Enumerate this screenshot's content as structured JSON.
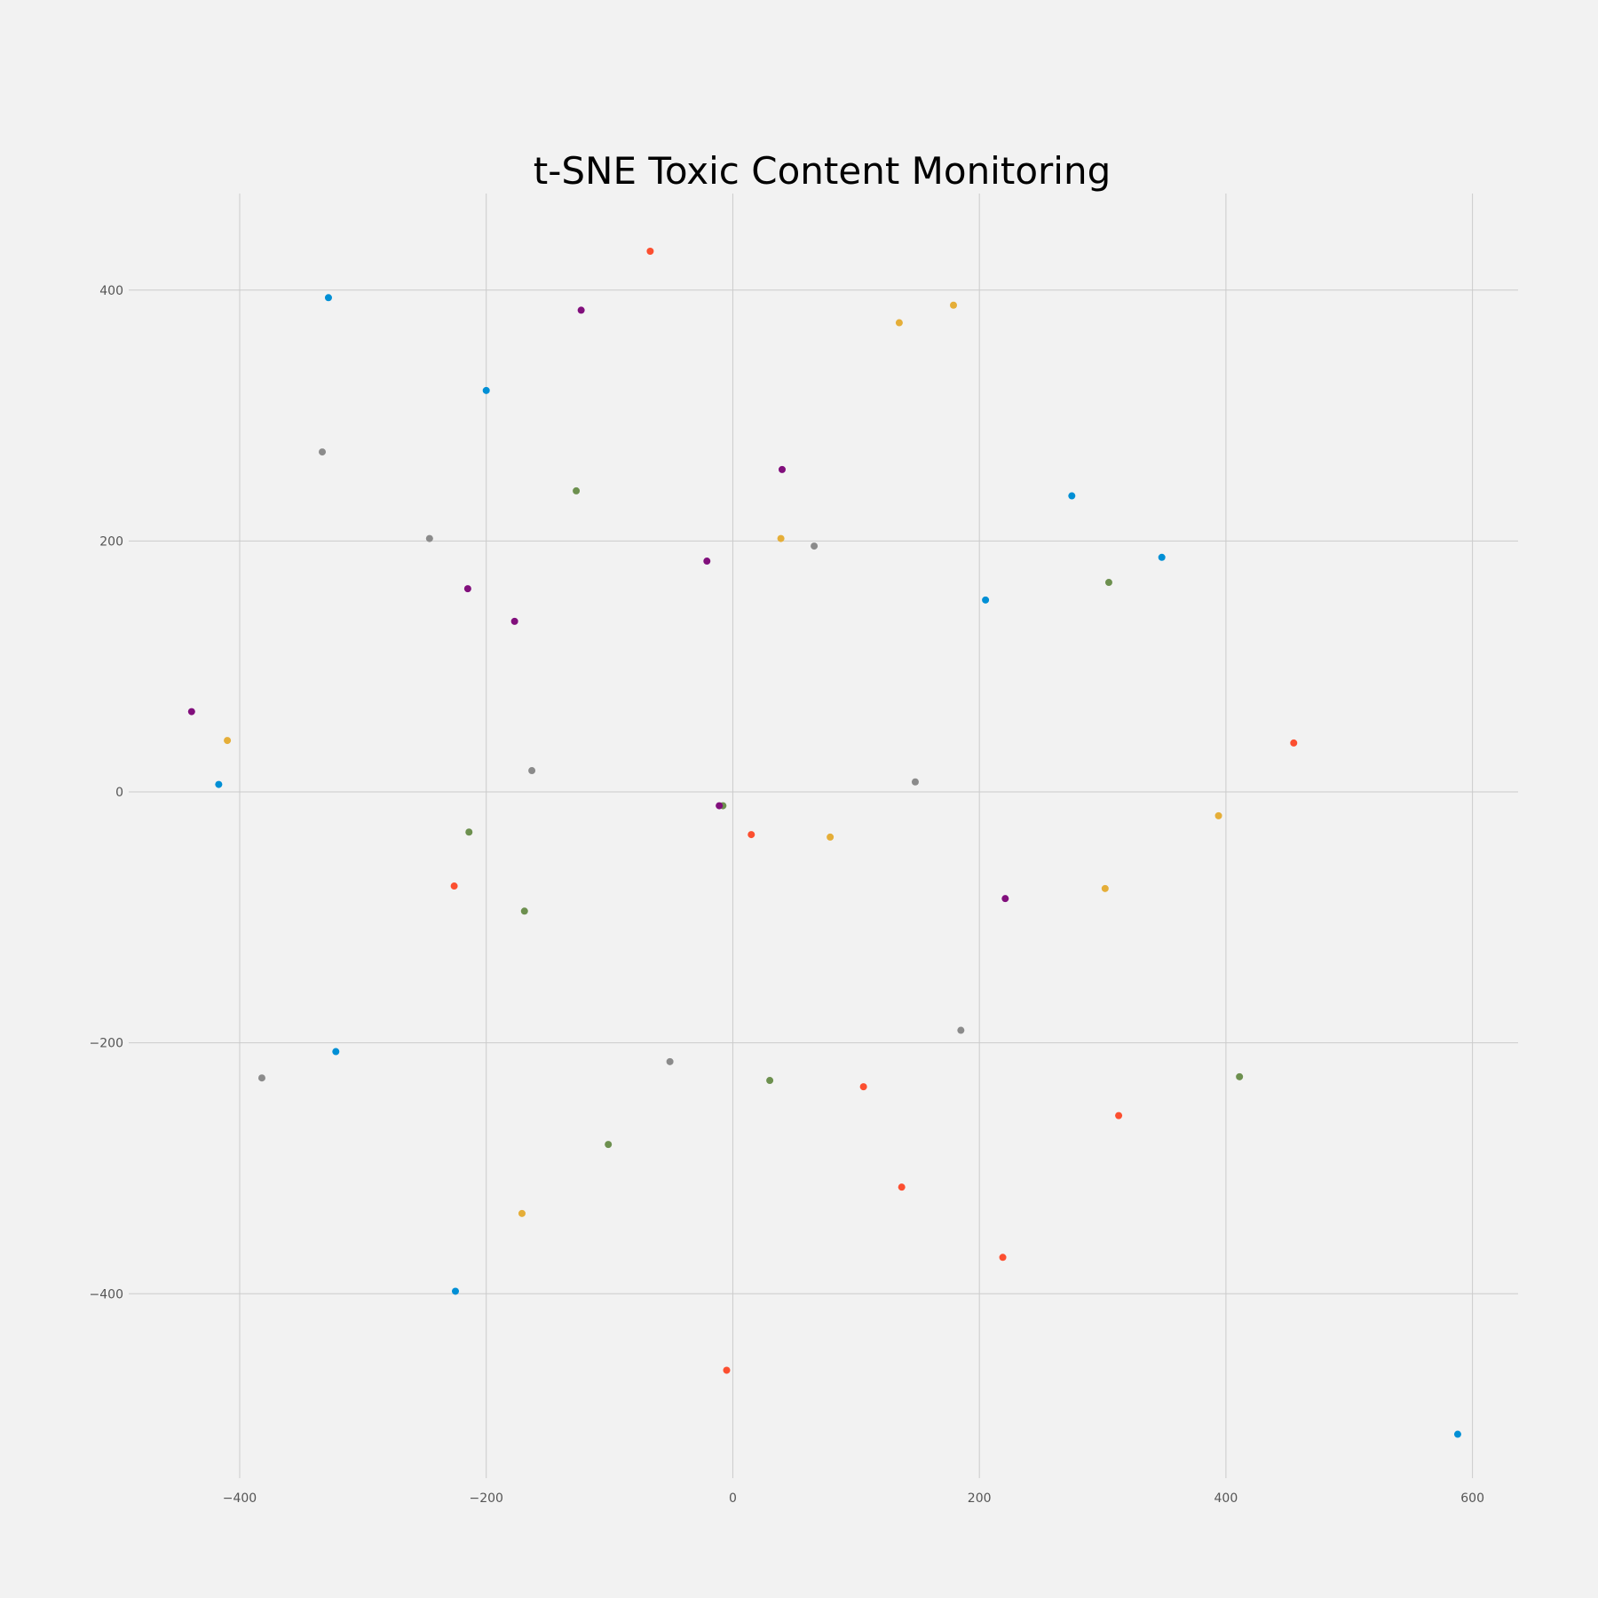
{
  "chart_data": {
    "type": "scatter",
    "title": "t-SNE Toxic Content Monitoring",
    "xlabel": "",
    "ylabel": "",
    "xlim": [
      -490,
      637
    ],
    "ylim": [
      -547,
      477
    ],
    "xticks": [
      -400,
      -200,
      0,
      200,
      400,
      600
    ],
    "yticks": [
      -400,
      -200,
      0,
      200,
      400
    ],
    "xtick_labels": [
      "−400",
      "−200",
      "0",
      "200",
      "400",
      "600"
    ],
    "ytick_labels": [
      "−400",
      "−200",
      "0",
      "200",
      "400"
    ],
    "grid": true,
    "legend": "none",
    "colors": {
      "background": "#f2f2f2",
      "grid": "#cbcbcb",
      "tick_text": "#555555",
      "title": "#000000"
    },
    "series": [
      {
        "color": "#008fd5",
        "points": [
          [
            -328,
            394
          ],
          [
            -200,
            320
          ],
          [
            -417,
            6
          ],
          [
            -322,
            -207
          ],
          [
            -225,
            -398
          ],
          [
            275,
            236
          ],
          [
            348,
            187
          ],
          [
            205,
            153
          ],
          [
            588,
            -512
          ]
        ]
      },
      {
        "color": "#fc4f30",
        "points": [
          [
            -67,
            431
          ],
          [
            -226,
            -75
          ],
          [
            15,
            -34
          ],
          [
            106,
            -235
          ],
          [
            137,
            -315
          ],
          [
            219,
            -371
          ],
          [
            313,
            -258
          ],
          [
            455,
            39
          ],
          [
            -5,
            -461
          ]
        ]
      },
      {
        "color": "#e5ae38",
        "points": [
          [
            135,
            374
          ],
          [
            179,
            388
          ],
          [
            39,
            202
          ],
          [
            -410,
            41
          ],
          [
            79,
            -36
          ],
          [
            302,
            -77
          ],
          [
            394,
            -19
          ],
          [
            -171,
            -336
          ]
        ]
      },
      {
        "color": "#6d904f",
        "points": [
          [
            -127,
            240
          ],
          [
            305,
            167
          ],
          [
            -214,
            -32
          ],
          [
            -169,
            -95
          ],
          [
            -8,
            -11
          ],
          [
            -101,
            -281
          ],
          [
            30,
            -230
          ],
          [
            411,
            -227
          ]
        ]
      },
      {
        "color": "#8b8b8b",
        "points": [
          [
            -333,
            271
          ],
          [
            -246,
            202
          ],
          [
            66,
            196
          ],
          [
            -163,
            17
          ],
          [
            148,
            8
          ],
          [
            185,
            -190
          ],
          [
            -51,
            -215
          ],
          [
            -382,
            -228
          ]
        ]
      },
      {
        "color": "#810f7c",
        "points": [
          [
            -123,
            384
          ],
          [
            40,
            257
          ],
          [
            -21,
            184
          ],
          [
            -215,
            162
          ],
          [
            -177,
            136
          ],
          [
            -439,
            64
          ],
          [
            -11,
            -11
          ],
          [
            221,
            -85
          ]
        ]
      }
    ]
  }
}
